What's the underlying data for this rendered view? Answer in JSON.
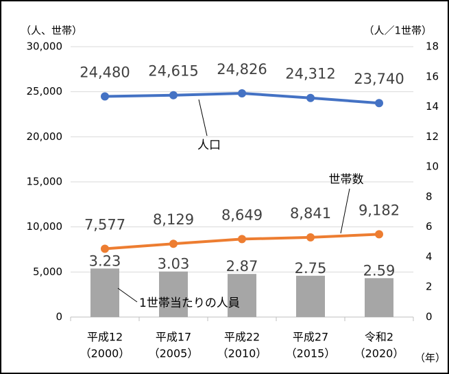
{
  "chart_data": {
    "type": "combo",
    "y_label": "（人、世帯）",
    "y2_label": "（人／1世帯）",
    "x_label": "（年）",
    "categories": [
      [
        "平成12",
        "（2000）"
      ],
      [
        "平成17",
        "（2005）"
      ],
      [
        "平成22",
        "（2010）"
      ],
      [
        "平成27",
        "（2015）"
      ],
      [
        "令和2",
        "（2020）"
      ]
    ],
    "ylim": [
      0,
      30000
    ],
    "yticks": [
      0,
      {
        "value": 5000,
        "label": "5,000"
      },
      {
        "value": 10000,
        "label": "10,000"
      },
      {
        "value": 15000,
        "label": "15,000"
      },
      {
        "value": 20000,
        "label": "20,000"
      },
      {
        "value": 25000,
        "label": "25,000"
      },
      {
        "value": 30000,
        "label": "30,000"
      }
    ],
    "y2lim": [
      0,
      18
    ],
    "y2ticks": [
      0,
      2,
      4,
      6,
      8,
      10,
      12,
      14,
      16,
      18
    ],
    "grid": true,
    "series": [
      {
        "name": "人口",
        "type": "line",
        "color": "#4472c4",
        "values": [
          24480,
          24615,
          24826,
          24312,
          23740
        ],
        "value_labels": [
          "24,480",
          "24,615",
          "24,826",
          "24,312",
          "23,740"
        ]
      },
      {
        "name": "世帯数",
        "type": "line",
        "color": "#ed7d31",
        "values": [
          7577,
          8129,
          8649,
          8841,
          9182
        ],
        "value_labels": [
          "7,577",
          "8,129",
          "8,649",
          "8,841",
          "9,182"
        ]
      },
      {
        "name": "1世帯当たりの人員",
        "type": "bar",
        "axis": "y2",
        "color": "#a6a6a6",
        "values": [
          3.23,
          3.03,
          2.87,
          2.75,
          2.59
        ]
      }
    ]
  }
}
